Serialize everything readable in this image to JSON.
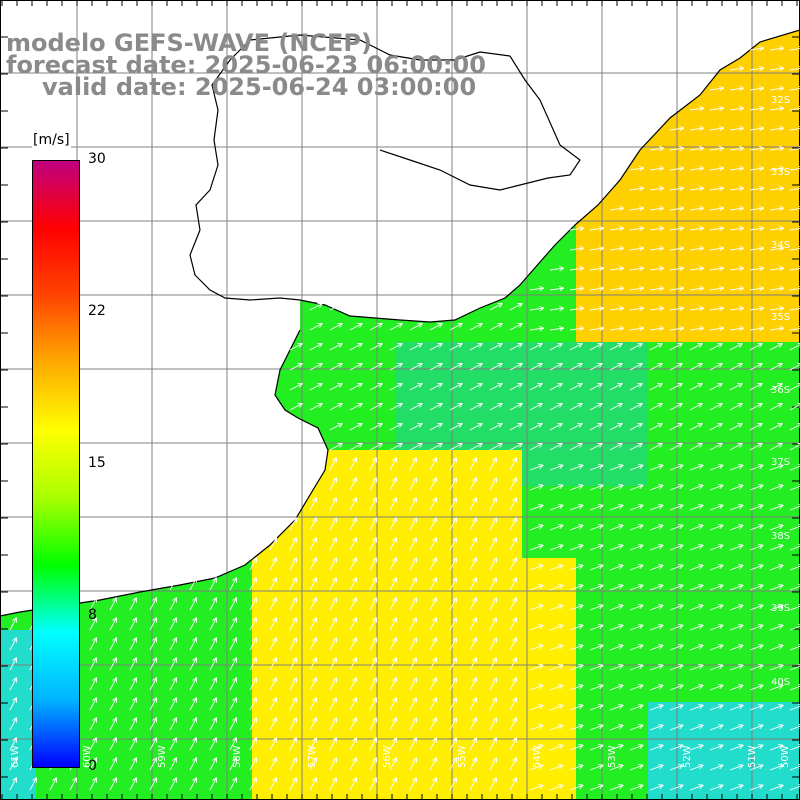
{
  "title": {
    "line1": "modelo GEFS-WAVE (NCEP)",
    "line2": "forecast date: 2025-06-23 06:00:00",
    "line3": "valid date: 2025-06-24 03:00:00"
  },
  "colorbar": {
    "unit": "[m/s]",
    "ticks": [
      "30",
      "22",
      "15",
      "8",
      "0"
    ],
    "tick_values": [
      30,
      22,
      15,
      8,
      0
    ],
    "min": 0,
    "max": 30,
    "colors": [
      "#0000ff",
      "#00b4ff",
      "#00ffff",
      "#00ff00",
      "#aaff00",
      "#ffff00",
      "#ffaa00",
      "#ff4400",
      "#ff0000",
      "#c00080"
    ]
  },
  "map": {
    "lat_labels": [
      "32S",
      "33S",
      "34S",
      "35S",
      "36S",
      "37S",
      "38S",
      "39S",
      "40S"
    ],
    "lon_labels": [
      "61W",
      "60W",
      "59W",
      "58W",
      "57W",
      "56W",
      "55W",
      "54W",
      "53W",
      "52W",
      "51W",
      "50W"
    ],
    "land_color": "#ffffff",
    "grid_color": "#808080",
    "coast_color": "#000000",
    "arrow_color": "#ffffff",
    "wind_field_note_colors": {
      "green": "#22ee22",
      "lime": "#aaff22",
      "yellow": "#ffee00",
      "orange": "#ffc400",
      "cyan": "#22ddcc"
    }
  }
}
